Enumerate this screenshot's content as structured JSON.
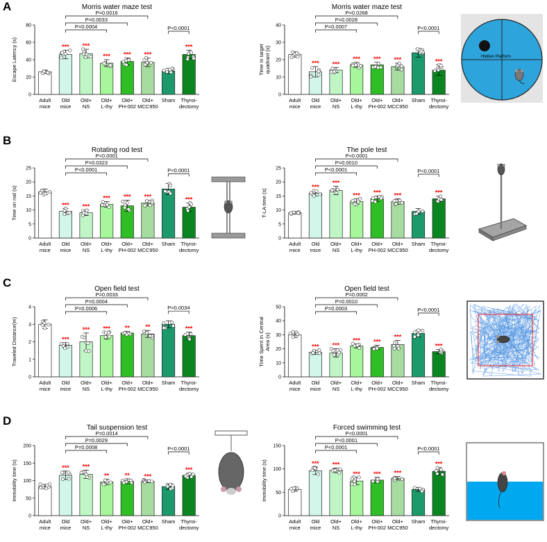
{
  "panels": [
    {
      "letter": "A"
    },
    {
      "letter": "B"
    },
    {
      "letter": "C"
    },
    {
      "letter": "D"
    }
  ],
  "group_colors": {
    "Adult mice": "#ffffff",
    "Old mice": "#d2f7ea",
    "Old+ NS": "#c0f6c6",
    "Old+ L-thy": "#a6f79c",
    "Old+ PH-002": "#2fbe25",
    "Old+ MCC950": "#a7dca0",
    "Sham": "#1c9a6c",
    "Thyroi- dectomy": "#0a8520"
  },
  "significance_color": "#ff0000",
  "chart_data": [
    {
      "type": "bar",
      "title": "Morris water maze test",
      "ylabel": "Escape Latency (s)",
      "ylim": [
        0,
        80
      ],
      "yticks": [
        0,
        20,
        40,
        60,
        80
      ],
      "categories": [
        [
          "Adult",
          "mice"
        ],
        [
          "Old",
          "mice"
        ],
        [
          "Old+",
          "NS"
        ],
        [
          "Old+",
          "L-thy"
        ],
        [
          "Old+",
          "PH-002"
        ],
        [
          "Old+",
          "MCC950"
        ],
        [
          "Sham",
          ""
        ],
        [
          "Thyroi-",
          "dectomy"
        ]
      ],
      "values": [
        26,
        46,
        47,
        36,
        38,
        37,
        27,
        46
      ],
      "errors": [
        2,
        5,
        5,
        4,
        4,
        5,
        3,
        5
      ],
      "stars": [
        "",
        "***",
        "***",
        "***",
        "***",
        "***",
        "",
        "***"
      ],
      "comparisons": [
        {
          "from": 1,
          "to": 5,
          "label": "P=0.0016"
        },
        {
          "from": 1,
          "to": 4,
          "label": "P=0.0033"
        },
        {
          "from": 1,
          "to": 3,
          "label": "P=0.0004"
        },
        {
          "from": 6,
          "to": 7,
          "label": "P<0.0001"
        }
      ]
    },
    {
      "type": "bar",
      "title": "Morris water maze test",
      "ylabel": "Time in target quadrant (s)",
      "ylabel_lines": [
        "Time in target",
        "quadrant (s)"
      ],
      "ylim": [
        0,
        40
      ],
      "yticks": [
        0,
        10,
        20,
        30,
        40
      ],
      "categories": [
        [
          "Adult",
          "mice"
        ],
        [
          "Old",
          "mice"
        ],
        [
          "Old+",
          "NS"
        ],
        [
          "Old+",
          "L-thy"
        ],
        [
          "Old+",
          "PH-002"
        ],
        [
          "Old+",
          "MCC950"
        ],
        [
          "Sham",
          ""
        ],
        [
          "Thyroi-",
          "dectomy"
        ]
      ],
      "values": [
        23,
        13,
        14,
        17,
        17,
        16,
        24,
        14
      ],
      "errors": [
        1.5,
        3,
        1.5,
        1.5,
        1.5,
        2,
        2.5,
        3
      ],
      "stars": [
        "",
        "***",
        "***",
        "***",
        "***",
        "***",
        "",
        "***"
      ],
      "comparisons": [
        {
          "from": 1,
          "to": 5,
          "label": "P=0.0268"
        },
        {
          "from": 1,
          "to": 4,
          "label": "P=0.0028"
        },
        {
          "from": 1,
          "to": 3,
          "label": "P=0.0007"
        },
        {
          "from": 6,
          "to": 7,
          "label": "P<0.0001"
        }
      ]
    },
    {
      "type": "bar",
      "title": "Rotating rod test",
      "ylabel": "Time on rod (s)",
      "ylim": [
        0,
        25
      ],
      "yticks": [
        0,
        5,
        10,
        15,
        20,
        25
      ],
      "categories": [
        [
          "Adult",
          "mice"
        ],
        [
          "Old",
          "mice"
        ],
        [
          "Old+",
          "NS"
        ],
        [
          "Old+",
          "L-thy"
        ],
        [
          "Old+",
          "PH-002"
        ],
        [
          "Old+",
          "MCC950"
        ],
        [
          "Sham",
          ""
        ],
        [
          "Thyroi-",
          "dectomy"
        ]
      ],
      "values": [
        16.5,
        9.5,
        9,
        12,
        11.5,
        12.5,
        17.5,
        11
      ],
      "errors": [
        1,
        1,
        1,
        1,
        2,
        1,
        2,
        1.5
      ],
      "stars": [
        "",
        "***",
        "***",
        "***",
        "***",
        "***",
        "",
        "***"
      ],
      "comparisons": [
        {
          "from": 1,
          "to": 5,
          "label": "P<0.0001"
        },
        {
          "from": 1,
          "to": 4,
          "label": "P=0.0323"
        },
        {
          "from": 1,
          "to": 3,
          "label": "P<0.0001"
        },
        {
          "from": 6,
          "to": 7,
          "label": "P<0.0001"
        }
      ]
    },
    {
      "type": "bar",
      "title": "The pole test",
      "ylabel": "T-LA time (s)",
      "ylim": [
        0,
        25
      ],
      "yticks": [
        0,
        5,
        10,
        15,
        20,
        25
      ],
      "categories": [
        [
          "Adult",
          "mice"
        ],
        [
          "Old",
          "mice"
        ],
        [
          "Old+",
          "NS"
        ],
        [
          "Old+",
          "L-thy"
        ],
        [
          "Old+",
          "PH-002"
        ],
        [
          "Old+",
          "MCC950"
        ],
        [
          "Sham",
          ""
        ],
        [
          "Thyroi-",
          "dectomy"
        ]
      ],
      "values": [
        9,
        16,
        17,
        13,
        14,
        13,
        9.5,
        14
      ],
      "errors": [
        0.5,
        1,
        1.5,
        1,
        1,
        1,
        1,
        1
      ],
      "stars": [
        "",
        "***",
        "***",
        "***",
        "***",
        "***",
        "",
        "***"
      ],
      "comparisons": [
        {
          "from": 1,
          "to": 5,
          "label": "P<0.0001"
        },
        {
          "from": 1,
          "to": 4,
          "label": "P=0.0010"
        },
        {
          "from": 1,
          "to": 3,
          "label": "P<0.0001"
        },
        {
          "from": 6,
          "to": 7,
          "label": "P<0.0001"
        }
      ]
    },
    {
      "type": "bar",
      "title": "Open field test",
      "ylabel": "Traveled Distance(m)",
      "ylim": [
        0,
        4
      ],
      "yticks": [
        0,
        1,
        2,
        3,
        4
      ],
      "tick_decimals": 0,
      "categories": [
        [
          "Adult",
          "mice"
        ],
        [
          "Old",
          "mice"
        ],
        [
          "Old+",
          "NS"
        ],
        [
          "Old+",
          "L-thy"
        ],
        [
          "Old+",
          "PH-002"
        ],
        [
          "Old+",
          "MCC950"
        ],
        [
          "Sham",
          ""
        ],
        [
          "Thyroi-",
          "dectomy"
        ]
      ],
      "values": [
        3.0,
        1.8,
        2.0,
        2.35,
        2.5,
        2.45,
        3.0,
        2.35
      ],
      "errors": [
        0.25,
        0.15,
        0.5,
        0.2,
        0.1,
        0.2,
        0.2,
        0.2
      ],
      "stars": [
        "",
        "***",
        "***",
        "***",
        "**",
        "**",
        "",
        "***"
      ],
      "comparisons": [
        {
          "from": 1,
          "to": 5,
          "label": "P=0.0033"
        },
        {
          "from": 1,
          "to": 4,
          "label": "P=0.0004"
        },
        {
          "from": 1,
          "to": 3,
          "label": "P=0.0006"
        },
        {
          "from": 6,
          "to": 7,
          "label": "P=0.0034"
        }
      ]
    },
    {
      "type": "bar",
      "title": "Open field test",
      "ylabel": "Time Spent in Central Area (s)",
      "ylabel_lines": [
        "Time Spent in Central",
        "Area (s)"
      ],
      "ylim": [
        0,
        50
      ],
      "yticks": [
        0,
        10,
        20,
        30,
        40,
        50
      ],
      "categories": [
        [
          "Adult",
          "mice"
        ],
        [
          "Old",
          "mice"
        ],
        [
          "Old+",
          "NS"
        ],
        [
          "Old+",
          "L-thy"
        ],
        [
          "Old+",
          "PH-002"
        ],
        [
          "Old+",
          "MCC950"
        ],
        [
          "Sham",
          ""
        ],
        [
          "Thyroi-",
          "dectomy"
        ]
      ],
      "values": [
        30,
        17.5,
        17,
        22,
        21,
        23,
        31,
        18
      ],
      "errors": [
        2,
        1.5,
        3,
        1.5,
        1.5,
        3,
        2.5,
        1.5
      ],
      "stars": [
        "",
        "***",
        "***",
        "***",
        "***",
        "***",
        "",
        "***"
      ],
      "comparisons": [
        {
          "from": 1,
          "to": 5,
          "label": "P=0.0002"
        },
        {
          "from": 1,
          "to": 4,
          "label": "P=0.0010"
        },
        {
          "from": 1,
          "to": 3,
          "label": "P=0.0003"
        },
        {
          "from": 6,
          "to": 7,
          "label": "P<0.0001"
        }
      ]
    },
    {
      "type": "bar",
      "title": "Tail suspension test",
      "ylabel": "Immobility time (s)",
      "ylim": [
        0,
        200
      ],
      "yticks": [
        0,
        50,
        100,
        150,
        200
      ],
      "categories": [
        [
          "Adult",
          "mice"
        ],
        [
          "Old",
          "mice"
        ],
        [
          "Old+",
          "NS"
        ],
        [
          "Old+",
          "L-thy"
        ],
        [
          "Old+",
          "PH-002"
        ],
        [
          "Old+",
          "MCC950"
        ],
        [
          "Sham",
          ""
        ],
        [
          "Thyroi-",
          "dectomy"
        ]
      ],
      "values": [
        83,
        115,
        118,
        96,
        98,
        98,
        83,
        115
      ],
      "errors": [
        6,
        12,
        12,
        8,
        7,
        4,
        8,
        6
      ],
      "stars": [
        "",
        "***",
        "***",
        "**",
        "**",
        "***",
        "",
        "***"
      ],
      "comparisons": [
        {
          "from": 1,
          "to": 5,
          "label": "P=0.0014"
        },
        {
          "from": 1,
          "to": 4,
          "label": "P=0.0029"
        },
        {
          "from": 1,
          "to": 3,
          "label": "P=0.0008"
        },
        {
          "from": 6,
          "to": 7,
          "label": "P<0.0001"
        }
      ]
    },
    {
      "type": "bar",
      "title": "Forced swimming test",
      "ylabel": "Immobility time (s)",
      "ylim": [
        0,
        150
      ],
      "yticks": [
        0,
        50,
        100,
        150
      ],
      "categories": [
        [
          "Adult",
          "mice"
        ],
        [
          "Old",
          "mice"
        ],
        [
          "Old+",
          "NS"
        ],
        [
          "Old+",
          "L-thy"
        ],
        [
          "Old+",
          "PH-002"
        ],
        [
          "Old+",
          "MCC950"
        ],
        [
          "Sham",
          ""
        ],
        [
          "Thyroi-",
          "dectomy"
        ]
      ],
      "values": [
        56,
        96,
        97,
        74,
        76,
        80,
        56,
        95
      ],
      "errors": [
        4,
        8,
        5,
        8,
        6,
        4,
        4,
        8
      ],
      "stars": [
        "",
        "***",
        "***",
        "***",
        "***",
        "***",
        "",
        "***"
      ],
      "comparisons": [
        {
          "from": 1,
          "to": 5,
          "label": "P<0.0001"
        },
        {
          "from": 1,
          "to": 4,
          "label": "P<0.0001"
        },
        {
          "from": 1,
          "to": 3,
          "label": "P<0.0001"
        },
        {
          "from": 6,
          "to": 7,
          "label": "P<0.0001"
        }
      ]
    }
  ],
  "illustrations": {
    "water_maze_label": "Hidden Platform"
  }
}
